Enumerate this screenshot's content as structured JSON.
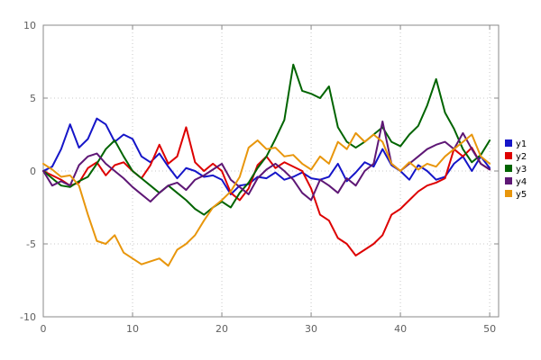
{
  "chart_data": {
    "type": "line",
    "title": "",
    "xlabel": "",
    "ylabel": "",
    "xlim": [
      0,
      51
    ],
    "ylim": [
      -10,
      10
    ],
    "xticks": [
      0,
      10,
      20,
      30,
      40,
      50
    ],
    "yticks": [
      -10,
      -5,
      0,
      5,
      10
    ],
    "grid": true,
    "grid_style": "dotted",
    "legend_position": "right",
    "x": [
      0,
      1,
      2,
      3,
      4,
      5,
      6,
      7,
      8,
      9,
      10,
      11,
      12,
      13,
      14,
      15,
      16,
      17,
      18,
      19,
      20,
      21,
      22,
      23,
      24,
      25,
      26,
      27,
      28,
      29,
      30,
      31,
      32,
      33,
      34,
      35,
      36,
      37,
      38,
      39,
      40,
      41,
      42,
      43,
      44,
      45,
      46,
      47,
      48,
      49,
      50
    ],
    "series": [
      {
        "name": "y1",
        "color": "#1515c8",
        "values": [
          0,
          0.3,
          1.5,
          3.2,
          1.6,
          2.2,
          3.6,
          3.2,
          2.0,
          2.5,
          2.2,
          1.0,
          0.6,
          1.2,
          0.3,
          -0.5,
          0.2,
          0.0,
          -0.4,
          -0.3,
          -0.6,
          -1.6,
          -1.0,
          -0.9,
          -0.4,
          -0.5,
          -0.1,
          -0.6,
          -0.4,
          -0.1,
          -0.5,
          -0.6,
          -0.4,
          0.5,
          -0.7,
          -0.1,
          0.6,
          0.3,
          1.5,
          0.4,
          0.0,
          -0.6,
          0.4,
          0.0,
          -0.6,
          -0.4,
          0.5,
          1.0,
          0.0,
          1.0,
          0.2
        ]
      },
      {
        "name": "y2",
        "color": "#dd0000",
        "values": [
          0,
          -0.3,
          -0.6,
          -1.0,
          -0.8,
          0.2,
          0.6,
          -0.3,
          0.4,
          0.6,
          0.0,
          -0.5,
          0.4,
          1.8,
          0.5,
          1.0,
          3.0,
          0.6,
          0.0,
          0.5,
          0.0,
          -1.5,
          -2.0,
          -1.2,
          0.4,
          1.0,
          0.2,
          0.6,
          0.3,
          0.0,
          -1.2,
          -3.0,
          -3.4,
          -4.6,
          -5.0,
          -5.8,
          -5.4,
          -5.0,
          -4.4,
          -3.0,
          -2.6,
          -2.0,
          -1.4,
          -1.0,
          -0.8,
          -0.5,
          1.5,
          1.0,
          1.6,
          0.5,
          0.1
        ]
      },
      {
        "name": "y3",
        "color": "#006400",
        "values": [
          0,
          -0.5,
          -1.0,
          -1.1,
          -0.7,
          -0.4,
          0.5,
          1.5,
          2.1,
          1.0,
          0.0,
          -0.5,
          -1.0,
          -1.5,
          -1.0,
          -1.5,
          -2.0,
          -2.6,
          -3.0,
          -2.5,
          -2.1,
          -2.5,
          -1.5,
          -0.8,
          0.2,
          1.0,
          2.2,
          3.5,
          7.3,
          5.5,
          5.3,
          5.0,
          5.8,
          3.0,
          2.0,
          1.6,
          2.0,
          2.5,
          3.0,
          2.0,
          1.7,
          2.5,
          3.1,
          4.5,
          6.3,
          4.0,
          2.9,
          1.5,
          0.6,
          1.1,
          2.1
        ]
      },
      {
        "name": "y4",
        "color": "#5e1775",
        "values": [
          0,
          -1.0,
          -0.7,
          -1.0,
          0.4,
          1.0,
          1.2,
          0.5,
          0.0,
          -0.5,
          -1.1,
          -1.6,
          -2.1,
          -1.5,
          -1.0,
          -0.8,
          -1.3,
          -0.6,
          -0.3,
          0.1,
          0.5,
          -0.6,
          -1.1,
          -1.6,
          -0.5,
          0.1,
          0.5,
          0.0,
          -0.6,
          -1.5,
          -2.0,
          -0.6,
          -1.0,
          -1.5,
          -0.5,
          -1.0,
          0.0,
          0.5,
          3.4,
          0.5,
          0.0,
          0.5,
          1.0,
          1.5,
          1.8,
          2.0,
          1.5,
          2.6,
          1.5,
          0.5,
          0.1
        ]
      },
      {
        "name": "y5",
        "color": "#e8960c",
        "values": [
          0.5,
          0.1,
          -0.4,
          -0.3,
          -1.0,
          -3.0,
          -4.8,
          -5.0,
          -4.4,
          -5.6,
          -6.0,
          -6.4,
          -6.2,
          -6.0,
          -6.5,
          -5.4,
          -5.0,
          -4.4,
          -3.4,
          -2.5,
          -2.0,
          -1.4,
          -0.4,
          1.6,
          2.1,
          1.5,
          1.6,
          1.0,
          1.1,
          0.5,
          0.1,
          1.0,
          0.5,
          2.0,
          1.5,
          2.6,
          2.0,
          2.5,
          2.0,
          0.5,
          0.0,
          0.6,
          0.1,
          0.5,
          0.3,
          1.0,
          1.5,
          2.0,
          2.5,
          1.0,
          0.5
        ]
      }
    ]
  },
  "layout": {
    "border_color": "#8a8a8a",
    "grid_color": "#c8c8c8",
    "tick_label_color": "#606060"
  }
}
